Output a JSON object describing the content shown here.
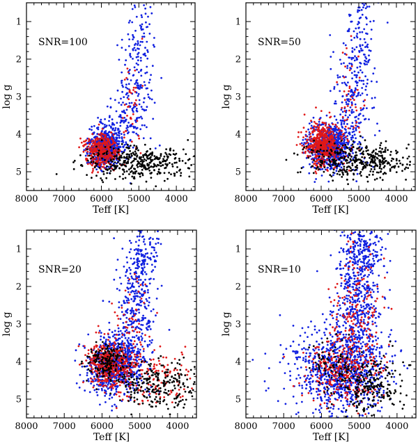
{
  "chart_data": [
    {
      "type": "scatter",
      "panel": "top-left",
      "annotation": "SNR=100",
      "xlabel": "Teff [K]",
      "ylabel": "log g",
      "xlim": [
        8000,
        3500
      ],
      "ylim": [
        5.5,
        0.5
      ],
      "xticks": [
        "8000",
        "7000",
        "6000",
        "5000",
        "4000"
      ],
      "yticks": [
        "1",
        "2",
        "3",
        "4",
        "5"
      ],
      "series": [
        {
          "name": "blue",
          "color": "#1020e0",
          "clusters": [
            {
              "x": 5900,
              "y": 4.35,
              "sx": 220,
              "sy": 0.25,
              "n": 700
            },
            {
              "x": 5100,
              "y": 2.9,
              "sx": 220,
              "sy": 0.9,
              "n": 170
            },
            {
              "x": 5000,
              "y": 1.3,
              "sx": 180,
              "sy": 0.8,
              "n": 60
            },
            {
              "x": 5500,
              "y": 3.6,
              "sx": 200,
              "sy": 0.3,
              "n": 60
            }
          ]
        },
        {
          "name": "red",
          "color": "#e01818",
          "clusters": [
            {
              "x": 6000,
              "y": 4.45,
              "sx": 230,
              "sy": 0.22,
              "n": 380
            },
            {
              "x": 5200,
              "y": 3.3,
              "sx": 200,
              "sy": 0.7,
              "n": 40
            }
          ]
        },
        {
          "name": "black",
          "color": "#000000",
          "clusters": [
            {
              "x": 5000,
              "y": 4.75,
              "sx": 700,
              "sy": 0.22,
              "n": 380
            }
          ]
        }
      ]
    },
    {
      "type": "scatter",
      "panel": "top-right",
      "annotation": "SNR=50",
      "xlabel": "Teff [K]",
      "ylabel": "log g",
      "xlim": [
        8000,
        3500
      ],
      "ylim": [
        5.5,
        0.5
      ],
      "xticks": [
        "8000",
        "7000",
        "6000",
        "5000",
        "4000"
      ],
      "yticks": [
        "1",
        "2",
        "3",
        "4",
        "5"
      ],
      "series": [
        {
          "name": "blue",
          "color": "#1020e0",
          "clusters": [
            {
              "x": 5800,
              "y": 4.3,
              "sx": 280,
              "sy": 0.3,
              "n": 750
            },
            {
              "x": 5100,
              "y": 2.9,
              "sx": 260,
              "sy": 0.95,
              "n": 220
            },
            {
              "x": 4900,
              "y": 1.2,
              "sx": 200,
              "sy": 0.7,
              "n": 80
            }
          ]
        },
        {
          "name": "red",
          "color": "#e01818",
          "clusters": [
            {
              "x": 5950,
              "y": 4.3,
              "sx": 240,
              "sy": 0.3,
              "n": 500
            },
            {
              "x": 5200,
              "y": 3.2,
              "sx": 220,
              "sy": 0.8,
              "n": 50
            }
          ]
        },
        {
          "name": "black",
          "color": "#000000",
          "clusters": [
            {
              "x": 5000,
              "y": 4.7,
              "sx": 700,
              "sy": 0.25,
              "n": 380
            }
          ]
        }
      ]
    },
    {
      "type": "scatter",
      "panel": "bottom-left",
      "annotation": "SNR=20",
      "xlabel": "Teff [K]",
      "ylabel": "log g",
      "xlim": [
        8000,
        3500
      ],
      "ylim": [
        5.5,
        0.5
      ],
      "xticks": [
        "8000",
        "7000",
        "6000",
        "5000",
        "4000"
      ],
      "yticks": [
        "1",
        "2",
        "3",
        "4",
        "5"
      ],
      "series": [
        {
          "name": "blue",
          "color": "#1020e0",
          "clusters": [
            {
              "x": 5650,
              "y": 4.1,
              "sx": 360,
              "sy": 0.4,
              "n": 750
            },
            {
              "x": 5100,
              "y": 2.6,
              "sx": 260,
              "sy": 1.0,
              "n": 350
            },
            {
              "x": 4900,
              "y": 1.1,
              "sx": 200,
              "sy": 0.5,
              "n": 100
            }
          ]
        },
        {
          "name": "red",
          "color": "#e01818",
          "clusters": [
            {
              "x": 5800,
              "y": 4.05,
              "sx": 300,
              "sy": 0.3,
              "n": 380
            },
            {
              "x": 4600,
              "y": 4.5,
              "sx": 550,
              "sy": 0.4,
              "n": 140
            },
            {
              "x": 5200,
              "y": 3.0,
              "sx": 250,
              "sy": 0.8,
              "n": 70
            }
          ]
        },
        {
          "name": "black",
          "color": "#000000",
          "clusters": [
            {
              "x": 5900,
              "y": 4.0,
              "sx": 260,
              "sy": 0.25,
              "n": 160
            },
            {
              "x": 4500,
              "y": 4.6,
              "sx": 550,
              "sy": 0.35,
              "n": 250
            }
          ]
        }
      ]
    },
    {
      "type": "scatter",
      "panel": "bottom-right",
      "annotation": "SNR=10",
      "xlabel": "Teff [K]",
      "ylabel": "log g",
      "xlim": [
        8000,
        3500
      ],
      "ylim": [
        5.5,
        0.5
      ],
      "xticks": [
        "8000",
        "7000",
        "6000",
        "5000",
        "4000"
      ],
      "yticks": [
        "1",
        "2",
        "3",
        "4",
        "5"
      ],
      "series": [
        {
          "name": "blue",
          "color": "#1020e0",
          "clusters": [
            {
              "x": 5500,
              "y": 4.2,
              "sx": 650,
              "sy": 0.6,
              "n": 900
            },
            {
              "x": 5050,
              "y": 2.4,
              "sx": 320,
              "sy": 1.1,
              "n": 520
            },
            {
              "x": 4900,
              "y": 1.0,
              "sx": 250,
              "sy": 0.4,
              "n": 150
            }
          ]
        },
        {
          "name": "red",
          "color": "#e01818",
          "clusters": [
            {
              "x": 5400,
              "y": 4.2,
              "sx": 500,
              "sy": 0.5,
              "n": 280
            },
            {
              "x": 5000,
              "y": 2.8,
              "sx": 350,
              "sy": 1.0,
              "n": 170
            }
          ]
        },
        {
          "name": "black",
          "color": "#000000",
          "clusters": [
            {
              "x": 4700,
              "y": 4.6,
              "sx": 500,
              "sy": 0.4,
              "n": 220
            },
            {
              "x": 5800,
              "y": 4.0,
              "sx": 350,
              "sy": 0.3,
              "n": 60
            }
          ]
        }
      ]
    }
  ]
}
